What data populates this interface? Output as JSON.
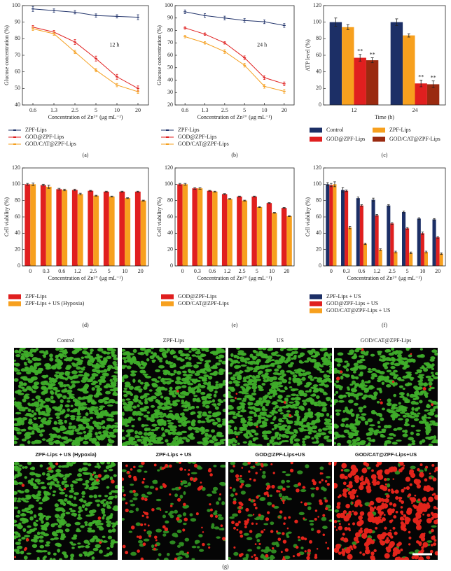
{
  "chart_data": [
    {
      "type": "line",
      "label": "(a)",
      "annotation": "12 h",
      "xlabel": "Concentration of Zn²⁺ (μg mL⁻¹)",
      "ylabel": "Glucose concentration (%)",
      "categories": [
        "0.6",
        "1.3",
        "2.5",
        "5",
        "10",
        "20"
      ],
      "ylim": [
        40,
        100
      ],
      "yticks": [
        40,
        50,
        60,
        70,
        80,
        90,
        100
      ],
      "series": [
        {
          "name": "ZPF-Lips",
          "color": "#22346b",
          "values": [
            98,
            97,
            96,
            94,
            93.5,
            93
          ],
          "errors": [
            1.5,
            1,
            1,
            1,
            1,
            1.5
          ]
        },
        {
          "name": "GOD@ZPF-Lips",
          "color": "#e02020",
          "values": [
            87,
            84,
            78,
            68,
            57,
            50
          ],
          "errors": [
            1,
            1,
            1.5,
            1.5,
            1.5,
            1.5
          ]
        },
        {
          "name": "GOD/CAT@ZPF-Lips",
          "color": "#f5a020",
          "values": [
            86,
            83,
            72,
            61,
            52,
            48
          ],
          "errors": [
            1,
            1,
            1,
            1,
            1,
            1
          ]
        }
      ]
    },
    {
      "type": "line",
      "label": "(b)",
      "annotation": "24 h",
      "xlabel": "Concentration of Zn²⁺ (μg mL⁻¹)",
      "ylabel": "Glucose concentration (%)",
      "categories": [
        "0.6",
        "1.3",
        "2.5",
        "5",
        "10",
        "20"
      ],
      "ylim": [
        20,
        100
      ],
      "yticks": [
        20,
        30,
        40,
        50,
        60,
        70,
        80,
        90,
        100
      ],
      "series": [
        {
          "name": "ZPF-Lips",
          "color": "#22346b",
          "values": [
            95,
            92,
            90,
            88,
            87,
            84
          ],
          "errors": [
            1.5,
            1.5,
            1.5,
            1.5,
            1.5,
            1.5
          ]
        },
        {
          "name": "GOD@ZPF-Lips",
          "color": "#e02020",
          "values": [
            82,
            77,
            70,
            58,
            42,
            37
          ],
          "errors": [
            1,
            1,
            1,
            1.5,
            1.5,
            1.5
          ]
        },
        {
          "name": "GOD/CAT@ZPF-Lips",
          "color": "#f5a020",
          "values": [
            75,
            70,
            63,
            52,
            35,
            31
          ],
          "errors": [
            1,
            1,
            1.5,
            1.5,
            1.5,
            1.5
          ]
        }
      ]
    },
    {
      "type": "bar",
      "label": "(c)",
      "xlabel": "Time (h)",
      "ylabel": "ATP level (%)",
      "categories": [
        "12",
        "24"
      ],
      "ylim": [
        0,
        120
      ],
      "yticks": [
        0,
        20,
        40,
        60,
        80,
        100,
        120
      ],
      "series": [
        {
          "name": "Control",
          "color": "#1c2f66",
          "values": [
            100,
            100
          ],
          "errors": [
            5,
            4
          ]
        },
        {
          "name": "ZPF-Lips",
          "color": "#f7a01e",
          "values": [
            94,
            84
          ],
          "errors": [
            3,
            2
          ]
        },
        {
          "name": "GOD@ZPF-Lips",
          "color": "#e01f1f",
          "values": [
            57,
            26
          ],
          "errors": [
            4,
            4
          ],
          "significance": [
            "**",
            "**"
          ]
        },
        {
          "name": "GOD/CAT@ZPF-Lips",
          "color": "#9a2a10",
          "values": [
            54,
            25
          ],
          "errors": [
            3,
            4
          ],
          "significance": [
            "**",
            "**"
          ]
        }
      ]
    },
    {
      "type": "bar",
      "label": "(d)",
      "xlabel": "Concentration of Zn²⁺ (μg mL⁻¹)",
      "ylabel": "Cell viability (%)",
      "categories": [
        "0",
        "0.3",
        "0.6",
        "1.2",
        "2.5",
        "5",
        "10",
        "20"
      ],
      "ylim": [
        0,
        120
      ],
      "yticks": [
        0,
        20,
        40,
        60,
        80,
        100,
        120
      ],
      "series": [
        {
          "name": "ZPF-Lips",
          "color": "#e01f1f",
          "values": [
            100,
            99,
            94,
            93,
            92,
            91,
            91,
            91
          ],
          "errors": [
            1,
            1,
            1,
            1,
            0.5,
            0.5,
            0.5,
            0.5
          ]
        },
        {
          "name": "ZPF-Lips + US (Hypoxia)",
          "color": "#f7a01e",
          "values": [
            100,
            97,
            93,
            88,
            86,
            85,
            83,
            80
          ],
          "errors": [
            1.5,
            2,
            1,
            1,
            0.5,
            0.5,
            0.5,
            0.5
          ]
        }
      ]
    },
    {
      "type": "bar",
      "label": "(e)",
      "xlabel": "Concentration of Zn²⁺ (μg mL⁻¹)",
      "ylabel": "Cell viability (%)",
      "categories": [
        "0",
        "0.3",
        "0.6",
        "1.2",
        "2.5",
        "5",
        "10",
        "20"
      ],
      "ylim": [
        0,
        120
      ],
      "yticks": [
        0,
        20,
        40,
        60,
        80,
        100,
        120
      ],
      "series": [
        {
          "name": "GOD@ZPF-Lips",
          "color": "#e01f1f",
          "values": [
            100,
            95,
            92,
            88,
            85,
            85,
            77,
            71
          ],
          "errors": [
            1,
            1,
            0.5,
            0.5,
            0.5,
            0.5,
            0.5,
            0.5
          ]
        },
        {
          "name": "GOD/CAT@ZPF-Lips",
          "color": "#f7a01e",
          "values": [
            100,
            95,
            91,
            82,
            80,
            72,
            65,
            61
          ],
          "errors": [
            1,
            1,
            0.5,
            0.5,
            0.5,
            0.5,
            0.5,
            0.5
          ]
        }
      ]
    },
    {
      "type": "bar",
      "label": "(f)",
      "xlabel": "Concentration of Zn²⁺ (μg mL⁻¹)",
      "ylabel": "Cell viability (%)",
      "categories": [
        "0",
        "0.3",
        "0.6",
        "1.2",
        "2.5",
        "5",
        "10",
        "20"
      ],
      "ylim": [
        0,
        120
      ],
      "yticks": [
        0,
        20,
        40,
        60,
        80,
        100,
        120
      ],
      "series": [
        {
          "name": "ZPF-Lips + US",
          "color": "#1c2f66",
          "values": [
            100,
            93,
            83,
            81,
            74,
            66,
            58,
            57
          ],
          "errors": [
            2,
            3,
            1.5,
            2,
            1,
            1,
            1,
            1
          ]
        },
        {
          "name": "GOD@ZPF-Lips + US",
          "color": "#e01f1f",
          "values": [
            99,
            92,
            74,
            62,
            52,
            46,
            40,
            35
          ],
          "errors": [
            2,
            1,
            1,
            1,
            1,
            1,
            1.5,
            1
          ]
        },
        {
          "name": "GOD/CAT@ZPF-Lips + US",
          "color": "#f7a01e",
          "values": [
            100,
            47,
            27,
            20,
            17,
            16,
            17,
            15
          ],
          "errors": [
            3,
            1.5,
            1,
            1,
            1,
            1,
            1,
            1
          ]
        }
      ]
    }
  ],
  "microscopy": {
    "label": "(g)",
    "titles": [
      "Control",
      "ZPF-Lips",
      "US",
      "GOD/CAT@ZPF-Lips",
      "ZPF-Lips + US (Hypoxia)",
      "ZPF-Lips + US",
      "GOD@ZPF-Lips+US",
      "GOD/CAT@ZPF-Lips+US"
    ]
  }
}
